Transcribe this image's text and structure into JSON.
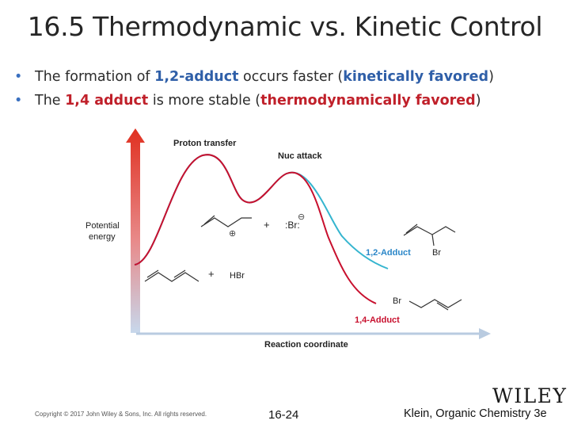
{
  "slide": {
    "title": "16.5 Thermodynamic vs. Kinetic Control",
    "bullets": [
      {
        "parts": [
          {
            "text": "The formation of ",
            "style": "plain"
          },
          {
            "text": "1,2-adduct",
            "style": "blue"
          },
          {
            "text": " occurs faster (",
            "style": "plain"
          },
          {
            "text": "kinetically favored",
            "style": "blue"
          },
          {
            "text": ")",
            "style": "plain"
          }
        ]
      },
      {
        "parts": [
          {
            "text": "The ",
            "style": "plain"
          },
          {
            "text": "1,4 adduct",
            "style": "red"
          },
          {
            "text": " is more stable (",
            "style": "plain"
          },
          {
            "text": "thermodynamically favored",
            "style": "red"
          },
          {
            "text": ")",
            "style": "plain"
          }
        ]
      }
    ]
  },
  "diagram": {
    "y_axis_label_line1": "Potential",
    "y_axis_label_line2": "energy",
    "x_axis_label": "Reaction coordinate",
    "peak1_label": "Proton transfer",
    "peak2_label": "Nuc attack",
    "reactant_plus": "+",
    "reactant_reagent": "HBr",
    "intermediate_plus": "+",
    "intermediate_charge": "⊕",
    "bromide_symbol": ":Br:",
    "bromide_charge": "⊖",
    "product_12_label": "1,2-Adduct",
    "product_12_br": "Br",
    "product_14_label": "1,4-Adduct",
    "product_14_br": "Br",
    "colors": {
      "kinetic_curve": "#35b5cf",
      "thermo_curve": "#c8102e",
      "kinetic_label": "#2a86c8",
      "thermo_label": "#c8102e",
      "axis_top": "#e03020",
      "axis_bottom": "#c7d8ec"
    }
  },
  "footer": {
    "copyright": "Copyright © 2017 John Wiley & Sons, Inc. All rights reserved.",
    "slide_number": "16-24",
    "publisher_logo": "WILEY",
    "credit": "Klein, Organic Chemistry 3e"
  }
}
